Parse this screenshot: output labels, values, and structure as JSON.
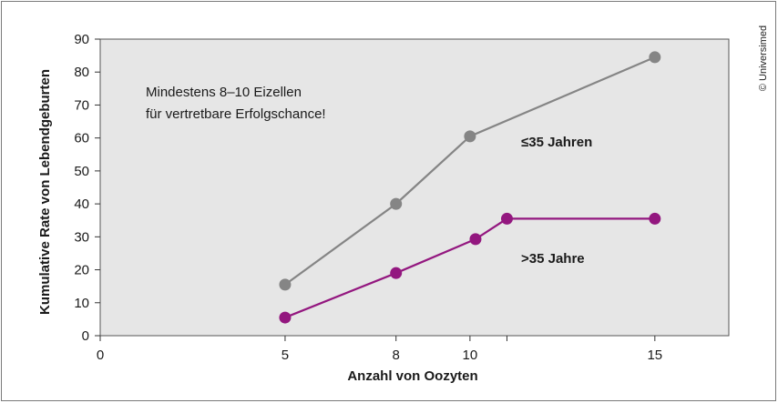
{
  "chart_data": {
    "type": "line",
    "xlabel": "Anzahl von Oozyten",
    "ylabel": "Kumulative Rate von Lebendgeburten",
    "xlim": [
      0,
      17
    ],
    "ylim": [
      0,
      90
    ],
    "x_ticks": [
      0,
      5,
      8,
      10,
      15
    ],
    "x_tick_labels": [
      "0",
      "5",
      "8",
      "10",
      "15"
    ],
    "y_ticks": [
      0,
      10,
      20,
      30,
      40,
      50,
      60,
      70,
      80,
      90
    ],
    "grid": false,
    "annotation_lines": [
      "Mindestens 8–10 Eizellen",
      "für vertretbare Erfolgschance!"
    ],
    "series": [
      {
        "name": "≤35 Jahren",
        "color": "#858585",
        "x": [
          5,
          8,
          10,
          15
        ],
        "y": [
          15.5,
          40,
          60.5,
          84.5
        ]
      },
      {
        "name": ">35 Jahre",
        "color": "#93177f",
        "x": [
          5,
          8,
          10.15,
          11,
          15
        ],
        "y": [
          5.5,
          19,
          29.3,
          35.5,
          35.5
        ]
      }
    ],
    "plot_background": "#e6e6e6"
  },
  "credit": "© Universimed"
}
